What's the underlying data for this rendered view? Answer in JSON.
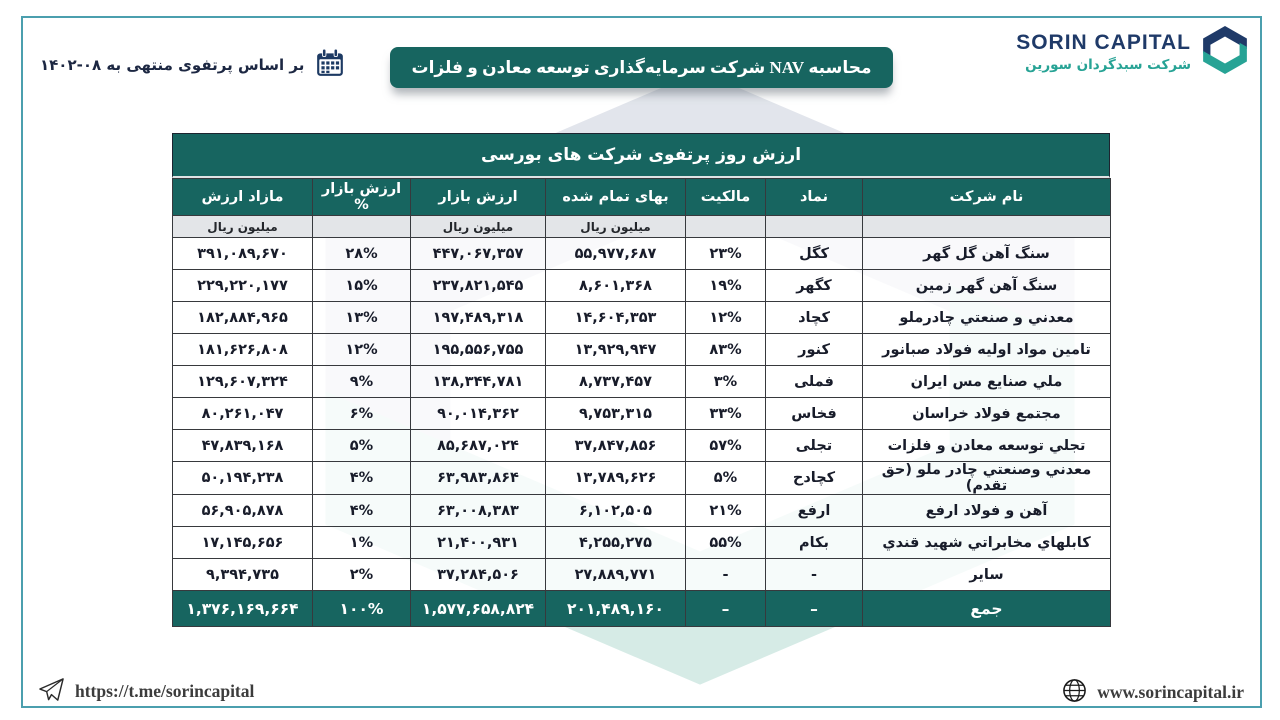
{
  "header": {
    "date_note": "بر اساس پرتفوی منتهی به ۰۸-۱۴۰۲",
    "banner_title": "محاسبه  NAV  شرکت سرمایه‌گذاری توسعه معادن و فلزات"
  },
  "brand": {
    "name": "SORIN CAPITAL",
    "subtitle": "شرکت سبدگردان سورین"
  },
  "table": {
    "title": "ارزش روز پرتفوی شرکت های بورسی",
    "columns": [
      "نام شرکت",
      "نماد",
      "مالکیت",
      "بهای تمام شده",
      "ارزش بازار",
      "ارزش بازار %",
      "مازاد ارزش"
    ],
    "unit_row": [
      "",
      "",
      "",
      "میلیون ریال",
      "میلیون ریال",
      "",
      "میلیون ریال"
    ],
    "rows": [
      [
        "سنگ آهن گل گهر",
        "کگل",
        "۲۳%",
        "۵۵,۹۷۷,۶۸۷",
        "۴۴۷,۰۶۷,۳۵۷",
        "۲۸%",
        "۳۹۱,۰۸۹,۶۷۰"
      ],
      [
        "سنگ آهن گهر زمین",
        "کگهر",
        "۱۹%",
        "۸,۶۰۱,۳۶۸",
        "۲۳۷,۸۲۱,۵۴۵",
        "۱۵%",
        "۲۲۹,۲۲۰,۱۷۷"
      ],
      [
        "معدني و صنعتي چادرملو",
        "کچاد",
        "۱۲%",
        "۱۴,۶۰۴,۳۵۳",
        "۱۹۷,۴۸۹,۳۱۸",
        "۱۳%",
        "۱۸۲,۸۸۴,۹۶۵"
      ],
      [
        "تامین مواد اولیه فولاد صبانور",
        "کنور",
        "۸۳%",
        "۱۳,۹۲۹,۹۴۷",
        "۱۹۵,۵۵۶,۷۵۵",
        "۱۲%",
        "۱۸۱,۶۲۶,۸۰۸"
      ],
      [
        "ملي صنايع مس ايران",
        "فملی",
        "۳%",
        "۸,۷۳۷,۴۵۷",
        "۱۳۸,۳۴۴,۷۸۱",
        "۹%",
        "۱۲۹,۶۰۷,۳۲۴"
      ],
      [
        "مجتمع فولاد خراسان",
        "فخاس",
        "۳۳%",
        "۹,۷۵۳,۳۱۵",
        "۹۰,۰۱۴,۳۶۲",
        "۶%",
        "۸۰,۲۶۱,۰۴۷"
      ],
      [
        "تجلي توسعه معادن و فلزات",
        "تجلی",
        "۵۷%",
        "۳۷,۸۴۷,۸۵۶",
        "۸۵,۶۸۷,۰۲۴",
        "۵%",
        "۴۷,۸۳۹,۱۶۸"
      ],
      [
        "معدني وصنعتي چادر ملو (حق تقدم)",
        "کچادح",
        "۵%",
        "۱۳,۷۸۹,۶۲۶",
        "۶۳,۹۸۳,۸۶۴",
        "۴%",
        "۵۰,۱۹۴,۲۳۸"
      ],
      [
        "آهن و فولاد ارفع",
        "ارفع",
        "۲۱%",
        "۶,۱۰۲,۵۰۵",
        "۶۳,۰۰۸,۳۸۳",
        "۴%",
        "۵۶,۹۰۵,۸۷۸"
      ],
      [
        "کابلهاي مخابراتي شهید قندي",
        "بکام",
        "۵۵%",
        "۴,۲۵۵,۲۷۵",
        "۲۱,۴۰۰,۹۳۱",
        "۱%",
        "۱۷,۱۴۵,۶۵۶"
      ],
      [
        "سایر",
        "-",
        "-",
        "۲۷,۸۸۹,۷۷۱",
        "۳۷,۲۸۴,۵۰۶",
        "۲%",
        "۹,۳۹۴,۷۳۵"
      ]
    ],
    "total_row": [
      "جمع",
      "–",
      "–",
      "۲۰۱,۴۸۹,۱۶۰",
      "۱,۵۷۷,۶۵۸,۸۲۴",
      "۱۰۰%",
      "۱,۳۷۶,۱۶۹,۶۶۴"
    ]
  },
  "footer": {
    "telegram": "https://t.me/sorincapital",
    "website": "www.sorincapital.ir"
  },
  "icons": {
    "calendar": "calendar-icon",
    "telegram": "telegram-plane-icon",
    "globe": "globe-icon",
    "brand_mark": "sorin-hexagon-s-logo"
  },
  "colors": {
    "teal_header": "#176560",
    "brand_navy": "#1f3a68",
    "brand_teal": "#27a395",
    "page_border": "#4b9fae",
    "unit_row_bg": "#e3e5e8",
    "watermark_gray": "#e2e5ec",
    "watermark_teal": "#d6ebe6"
  }
}
